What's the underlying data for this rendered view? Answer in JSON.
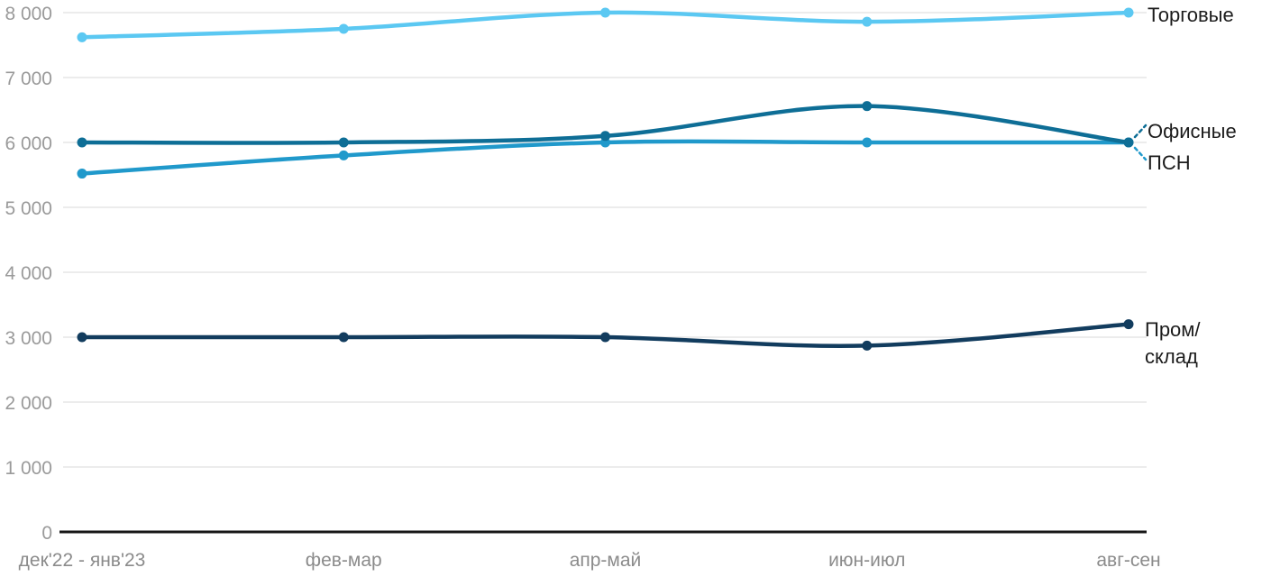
{
  "chart_data": {
    "type": "line",
    "title": "",
    "xlabel": "",
    "ylabel": "",
    "categories": [
      "дек'22 - янв'23",
      "фев-мар",
      "апр-май",
      "июн-июл",
      "авг-сен"
    ],
    "series": [
      {
        "id": "retail",
        "name": "Торговые",
        "color": "#5bc8f2",
        "values": [
          7620,
          7750,
          8000,
          7860,
          8000
        ]
      },
      {
        "id": "psn",
        "name": "ПСН",
        "color": "#2099cb",
        "values": [
          5520,
          5800,
          6000,
          6000,
          6000
        ],
        "label_connector": true
      },
      {
        "id": "office",
        "name": "Офисные",
        "color": "#0e6e96",
        "values": [
          6000,
          6000,
          6100,
          6560,
          6000
        ],
        "label_connector": true
      },
      {
        "id": "industrial",
        "name": "Пром/склад",
        "label_lines": [
          "Пром/",
          "склад"
        ],
        "color": "#123c5e",
        "values": [
          3000,
          3000,
          3000,
          2870,
          3200
        ]
      }
    ],
    "y_axis": {
      "min": 0,
      "max": 8000,
      "tick_interval": 1000,
      "tick_labels": [
        "0",
        "1 000",
        "2 000",
        "3 000",
        "4 000",
        "5 000",
        "6 000",
        "7 000",
        "8 000"
      ]
    },
    "grid": true,
    "legend_position": "right-of-plot-inline-labels",
    "colors": {
      "gridline": "#e6e6e6",
      "axis_line": "#161616",
      "y_tick_text": "#9a9a9a",
      "x_tick_text": "#8b8b8b",
      "series_label_text": "#1c1c1c"
    }
  }
}
